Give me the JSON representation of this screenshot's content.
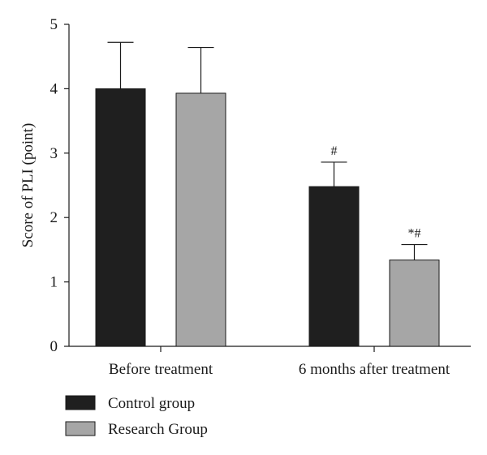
{
  "chart_data": {
    "type": "bar",
    "title": "",
    "xlabel": "",
    "ylabel": "Score of PLI (point)",
    "ylim": [
      0,
      5
    ],
    "yticks": [
      0,
      1,
      2,
      3,
      4,
      5
    ],
    "grid": false,
    "legend_position": "bottom-left",
    "categories": [
      "Before treatment",
      "6 months after treatment"
    ],
    "series": [
      {
        "name": "Control group",
        "color": "#1f1f1f",
        "values": [
          4.0,
          2.48
        ],
        "errors": [
          0.72,
          0.38
        ],
        "annotations": [
          "",
          "#"
        ]
      },
      {
        "name": "Research Group",
        "color": "#a6a6a6",
        "values": [
          3.93,
          1.34
        ],
        "errors": [
          0.71,
          0.24
        ],
        "annotations": [
          "",
          "*#"
        ]
      }
    ]
  }
}
